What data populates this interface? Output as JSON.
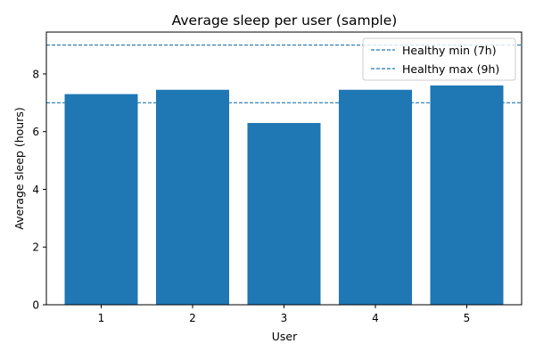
{
  "chart_data": {
    "type": "bar",
    "title": "Average sleep per user (sample)",
    "xlabel": "User",
    "ylabel": "Average sleep (hours)",
    "categories": [
      "1",
      "2",
      "3",
      "4",
      "5"
    ],
    "values": [
      7.3,
      7.45,
      6.3,
      7.45,
      7.6
    ],
    "ylim": [
      0,
      9.45
    ],
    "yticks": [
      "0",
      "2",
      "4",
      "6",
      "8"
    ],
    "grid": false,
    "bar_color": "#1f77b4",
    "reference_lines": [
      {
        "name": "Healthy min (7h)",
        "value": 7,
        "style": "dashed",
        "color": "#1f77b4"
      },
      {
        "name": "Healthy max (9h)",
        "value": 9,
        "style": "dashed",
        "color": "#1f77b4"
      }
    ],
    "legend": {
      "position": "top-right",
      "entries": [
        "Healthy min (7h)",
        "Healthy max (9h)"
      ]
    }
  }
}
